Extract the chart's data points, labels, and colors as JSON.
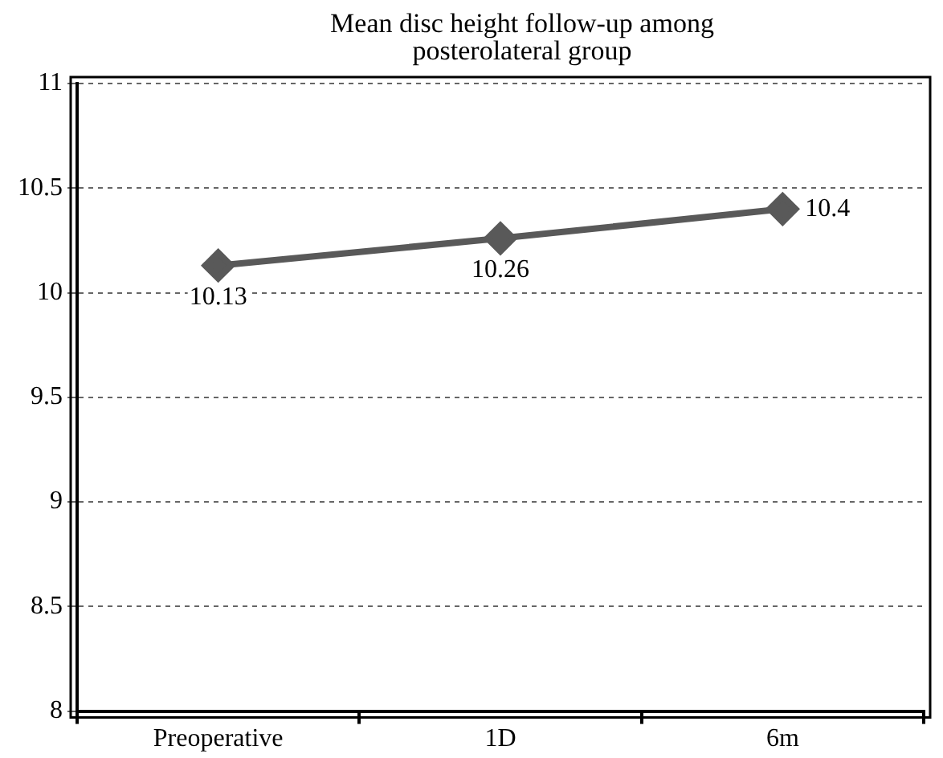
{
  "chart_data": {
    "type": "line",
    "title": "Mean disc height follow-up among posterolateral group",
    "categories": [
      "Preoperative",
      "1D",
      "6m"
    ],
    "series": [
      {
        "color": "#595959",
        "values": [
          10.13,
          10.26,
          10.4
        ]
      }
    ],
    "ylim": [
      8,
      11
    ],
    "yticks": [
      8,
      8.5,
      9,
      9.5,
      10,
      10.5,
      11
    ],
    "grid": "y",
    "legend": false,
    "marker": "diamond",
    "line_style": "solid",
    "data_labels": true
  }
}
